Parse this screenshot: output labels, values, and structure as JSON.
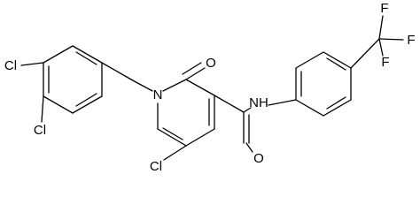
{
  "atom_labels": [
    "Cl",
    "Cl",
    "N",
    "O",
    "Cl",
    "NH",
    "O",
    "F",
    "F",
    "F"
  ]
}
